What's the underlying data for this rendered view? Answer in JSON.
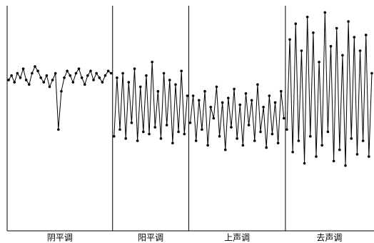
{
  "chart_data": {
    "type": "line",
    "color": "#000000",
    "ylim": [
      0,
      100
    ],
    "segments": [
      {
        "label": "阴平调",
        "values": [
          67,
          69,
          66,
          70,
          68,
          72,
          67,
          65,
          70,
          73,
          71,
          68,
          66,
          69,
          64,
          67,
          70,
          45,
          62,
          68,
          71,
          69,
          66,
          70,
          72,
          68,
          65,
          69,
          71,
          67,
          70,
          68,
          66,
          69,
          71,
          70
        ]
      },
      {
        "label": "阳平调",
        "values": [
          42,
          68,
          45,
          70,
          41,
          66,
          48,
          72,
          40,
          64,
          44,
          69,
          43,
          75,
          46,
          62,
          41,
          70,
          47,
          67,
          39,
          65,
          44,
          71,
          43,
          60
        ]
      },
      {
        "label": "上声调",
        "values": [
          48,
          60,
          40,
          58,
          45,
          62,
          38,
          55,
          50,
          64,
          42,
          57,
          36,
          59,
          46,
          63,
          41,
          56,
          38,
          61,
          47,
          58,
          40,
          65,
          44,
          55,
          37,
          60,
          43,
          57,
          39,
          62,
          50
        ]
      },
      {
        "label": "去声调",
        "values": [
          45,
          85,
          35,
          92,
          40,
          80,
          30,
          95,
          42,
          88,
          33,
          75,
          38,
          97,
          44,
          82,
          31,
          90,
          36,
          78,
          29,
          93,
          41,
          86,
          34,
          80,
          40,
          87,
          33,
          70
        ]
      }
    ]
  }
}
